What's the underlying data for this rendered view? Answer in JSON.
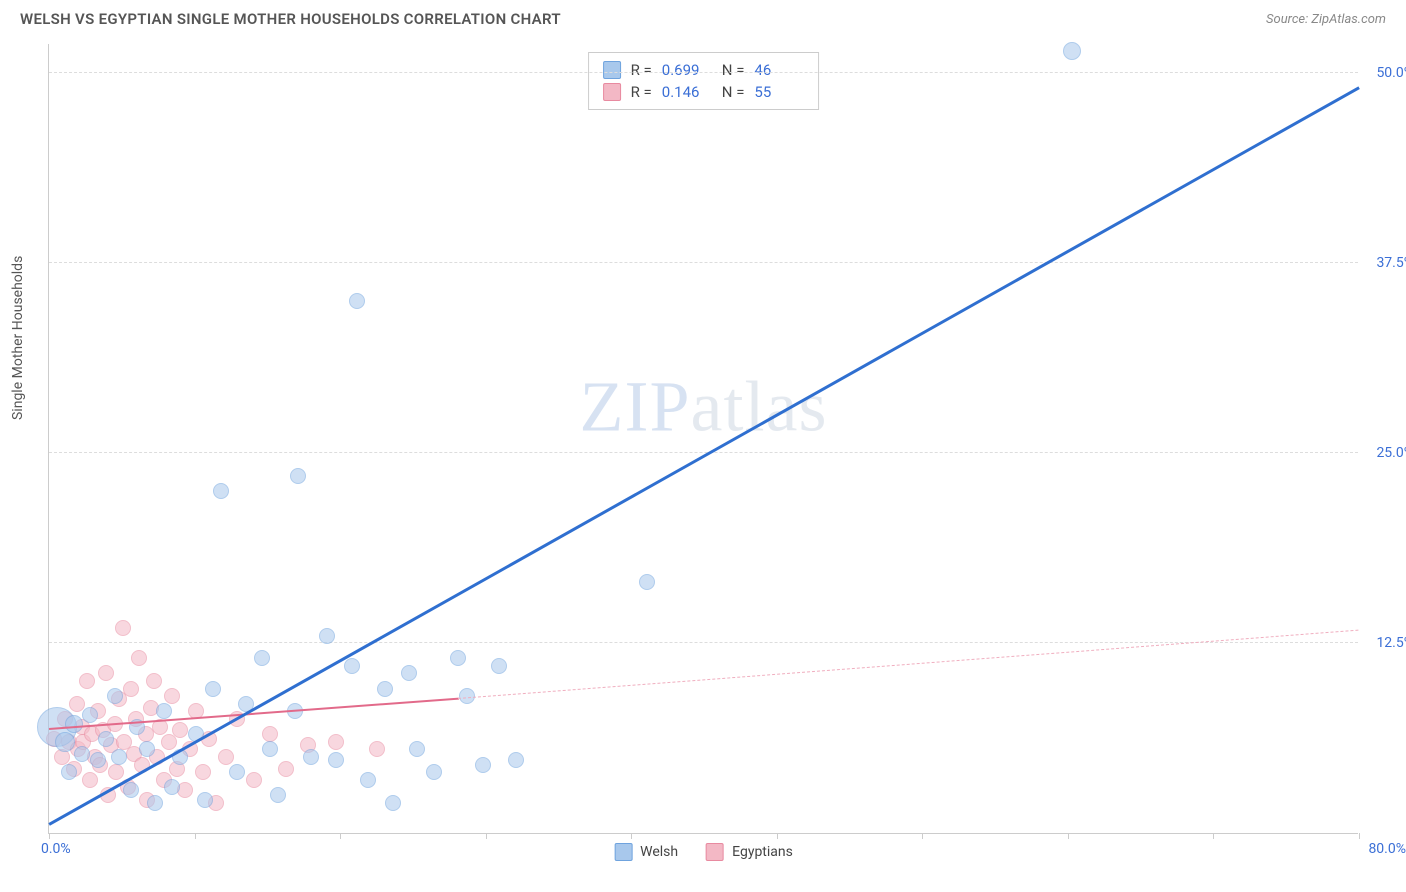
{
  "title": "WELSH VS EGYPTIAN SINGLE MOTHER HOUSEHOLDS CORRELATION CHART",
  "source_label": "Source: ZipAtlas.com",
  "ylabel": "Single Mother Households",
  "watermark": {
    "bold": "ZIP",
    "light": "atlas"
  },
  "chart": {
    "type": "scatter",
    "xlim": [
      0,
      80
    ],
    "ylim": [
      0,
      52
    ],
    "x_axis_label_left": "0.0%",
    "x_axis_label_right": "80.0%",
    "y_tick_labels": [
      "12.5%",
      "25.0%",
      "37.5%",
      "50.0%"
    ],
    "y_tick_values": [
      12.5,
      25.0,
      37.5,
      50.0
    ],
    "x_tick_values": [
      0,
      8.89,
      17.78,
      26.67,
      35.56,
      44.44,
      53.33,
      62.22,
      71.11,
      80
    ],
    "grid_color": "#dddddd",
    "axis_color": "#cccccc",
    "background_color": "#ffffff",
    "series": [
      {
        "name": "Welsh",
        "fill": "#a8c8ec",
        "stroke": "#6fa3de",
        "fill_opacity": 0.55,
        "marker_radius": 8,
        "R": "0.699",
        "N": "46",
        "trend": {
          "x1": 0,
          "y1": 0.5,
          "x2": 80,
          "y2": 49.0,
          "color": "#2f6fd0",
          "width": 2.5,
          "dashed": false
        },
        "points": [
          {
            "x": 0.5,
            "y": 7.0,
            "r": 20
          },
          {
            "x": 1.0,
            "y": 6.0,
            "r": 10
          },
          {
            "x": 1.5,
            "y": 7.2,
            "r": 9
          },
          {
            "x": 2.0,
            "y": 5.2,
            "r": 8
          },
          {
            "x": 2.5,
            "y": 7.8,
            "r": 8
          },
          {
            "x": 3.0,
            "y": 4.8,
            "r": 8
          },
          {
            "x": 3.5,
            "y": 6.2,
            "r": 8
          },
          {
            "x": 4.0,
            "y": 9.0,
            "r": 8
          },
          {
            "x": 4.3,
            "y": 5.0,
            "r": 8
          },
          {
            "x": 5.0,
            "y": 2.8,
            "r": 8
          },
          {
            "x": 5.4,
            "y": 7.0,
            "r": 8
          },
          {
            "x": 6.0,
            "y": 5.5,
            "r": 8
          },
          {
            "x": 6.5,
            "y": 2.0,
            "r": 8
          },
          {
            "x": 7.0,
            "y": 8.0,
            "r": 8
          },
          {
            "x": 7.5,
            "y": 3.0,
            "r": 8
          },
          {
            "x": 8.0,
            "y": 5.0,
            "r": 8
          },
          {
            "x": 9.0,
            "y": 6.5,
            "r": 8
          },
          {
            "x": 9.5,
            "y": 2.2,
            "r": 8
          },
          {
            "x": 10.0,
            "y": 9.5,
            "r": 8
          },
          {
            "x": 10.5,
            "y": 22.5,
            "r": 8
          },
          {
            "x": 11.5,
            "y": 4.0,
            "r": 8
          },
          {
            "x": 12.0,
            "y": 8.5,
            "r": 8
          },
          {
            "x": 13.0,
            "y": 11.5,
            "r": 8
          },
          {
            "x": 13.5,
            "y": 5.5,
            "r": 8
          },
          {
            "x": 14.0,
            "y": 2.5,
            "r": 8
          },
          {
            "x": 15.0,
            "y": 8.0,
            "r": 8
          },
          {
            "x": 15.2,
            "y": 23.5,
            "r": 8
          },
          {
            "x": 16.0,
            "y": 5.0,
            "r": 8
          },
          {
            "x": 17.0,
            "y": 13.0,
            "r": 8
          },
          {
            "x": 17.5,
            "y": 4.8,
            "r": 8
          },
          {
            "x": 18.5,
            "y": 11.0,
            "r": 8
          },
          {
            "x": 18.8,
            "y": 35.0,
            "r": 8
          },
          {
            "x": 19.5,
            "y": 3.5,
            "r": 8
          },
          {
            "x": 20.5,
            "y": 9.5,
            "r": 8
          },
          {
            "x": 21.0,
            "y": 2.0,
            "r": 8
          },
          {
            "x": 22.0,
            "y": 10.5,
            "r": 8
          },
          {
            "x": 22.5,
            "y": 5.5,
            "r": 8
          },
          {
            "x": 23.5,
            "y": 4.0,
            "r": 8
          },
          {
            "x": 25.0,
            "y": 11.5,
            "r": 8
          },
          {
            "x": 25.5,
            "y": 9.0,
            "r": 8
          },
          {
            "x": 26.5,
            "y": 4.5,
            "r": 8
          },
          {
            "x": 27.5,
            "y": 11.0,
            "r": 8
          },
          {
            "x": 28.5,
            "y": 4.8,
            "r": 8
          },
          {
            "x": 36.5,
            "y": 16.5,
            "r": 8
          },
          {
            "x": 62.5,
            "y": 51.5,
            "r": 9
          },
          {
            "x": 1.2,
            "y": 4.0,
            "r": 8
          }
        ]
      },
      {
        "name": "Egyptians",
        "fill": "#f3b8c5",
        "stroke": "#e88aa0",
        "fill_opacity": 0.55,
        "marker_radius": 8,
        "R": "0.146",
        "N": "55",
        "trend_solid": {
          "x1": 0,
          "y1": 6.8,
          "x2": 25,
          "y2": 8.8,
          "color": "#e26a8a",
          "width": 2,
          "dashed": false
        },
        "trend_dash": {
          "x1": 25,
          "y1": 8.8,
          "x2": 80,
          "y2": 13.3,
          "color": "#f0aebf",
          "width": 1.5,
          "dashed": true
        },
        "points": [
          {
            "x": 0.3,
            "y": 6.2,
            "r": 8
          },
          {
            "x": 0.8,
            "y": 5.0,
            "r": 8
          },
          {
            "x": 1.0,
            "y": 7.5,
            "r": 8
          },
          {
            "x": 1.2,
            "y": 6.0,
            "r": 8
          },
          {
            "x": 1.5,
            "y": 4.2,
            "r": 8
          },
          {
            "x": 1.7,
            "y": 8.5,
            "r": 8
          },
          {
            "x": 1.8,
            "y": 5.5,
            "r": 8
          },
          {
            "x": 2.0,
            "y": 7.0,
            "r": 8
          },
          {
            "x": 2.1,
            "y": 6.0,
            "r": 8
          },
          {
            "x": 2.3,
            "y": 10.0,
            "r": 8
          },
          {
            "x": 2.5,
            "y": 3.5,
            "r": 8
          },
          {
            "x": 2.6,
            "y": 6.5,
            "r": 8
          },
          {
            "x": 2.8,
            "y": 5.0,
            "r": 8
          },
          {
            "x": 3.0,
            "y": 8.0,
            "r": 8
          },
          {
            "x": 3.1,
            "y": 4.5,
            "r": 8
          },
          {
            "x": 3.3,
            "y": 6.8,
            "r": 8
          },
          {
            "x": 3.5,
            "y": 10.5,
            "r": 8
          },
          {
            "x": 3.6,
            "y": 2.5,
            "r": 8
          },
          {
            "x": 3.8,
            "y": 5.8,
            "r": 8
          },
          {
            "x": 4.0,
            "y": 7.2,
            "r": 8
          },
          {
            "x": 4.1,
            "y": 4.0,
            "r": 8
          },
          {
            "x": 4.3,
            "y": 8.8,
            "r": 8
          },
          {
            "x": 4.5,
            "y": 13.5,
            "r": 8
          },
          {
            "x": 4.6,
            "y": 6.0,
            "r": 8
          },
          {
            "x": 4.8,
            "y": 3.0,
            "r": 8
          },
          {
            "x": 5.0,
            "y": 9.5,
            "r": 8
          },
          {
            "x": 5.2,
            "y": 5.2,
            "r": 8
          },
          {
            "x": 5.3,
            "y": 7.5,
            "r": 8
          },
          {
            "x": 5.5,
            "y": 11.5,
            "r": 8
          },
          {
            "x": 5.7,
            "y": 4.5,
            "r": 8
          },
          {
            "x": 5.9,
            "y": 6.5,
            "r": 8
          },
          {
            "x": 6.0,
            "y": 2.2,
            "r": 8
          },
          {
            "x": 6.2,
            "y": 8.2,
            "r": 8
          },
          {
            "x": 6.4,
            "y": 10.0,
            "r": 8
          },
          {
            "x": 6.6,
            "y": 5.0,
            "r": 8
          },
          {
            "x": 6.8,
            "y": 7.0,
            "r": 8
          },
          {
            "x": 7.0,
            "y": 3.5,
            "r": 8
          },
          {
            "x": 7.3,
            "y": 6.0,
            "r": 8
          },
          {
            "x": 7.5,
            "y": 9.0,
            "r": 8
          },
          {
            "x": 7.8,
            "y": 4.2,
            "r": 8
          },
          {
            "x": 8.0,
            "y": 6.8,
            "r": 8
          },
          {
            "x": 8.3,
            "y": 2.8,
            "r": 8
          },
          {
            "x": 8.6,
            "y": 5.5,
            "r": 8
          },
          {
            "x": 9.0,
            "y": 8.0,
            "r": 8
          },
          {
            "x": 9.4,
            "y": 4.0,
            "r": 8
          },
          {
            "x": 9.8,
            "y": 6.2,
            "r": 8
          },
          {
            "x": 10.2,
            "y": 2.0,
            "r": 8
          },
          {
            "x": 10.8,
            "y": 5.0,
            "r": 8
          },
          {
            "x": 11.5,
            "y": 7.5,
            "r": 8
          },
          {
            "x": 12.5,
            "y": 3.5,
            "r": 8
          },
          {
            "x": 13.5,
            "y": 6.5,
            "r": 8
          },
          {
            "x": 14.5,
            "y": 4.2,
            "r": 8
          },
          {
            "x": 15.8,
            "y": 5.8,
            "r": 8
          },
          {
            "x": 17.5,
            "y": 6.0,
            "r": 8
          },
          {
            "x": 20.0,
            "y": 5.5,
            "r": 8
          }
        ]
      }
    ]
  },
  "legend": {
    "series1_label": "Welsh",
    "series2_label": "Egyptians"
  },
  "stats_labels": {
    "R": "R =",
    "N": "N ="
  }
}
